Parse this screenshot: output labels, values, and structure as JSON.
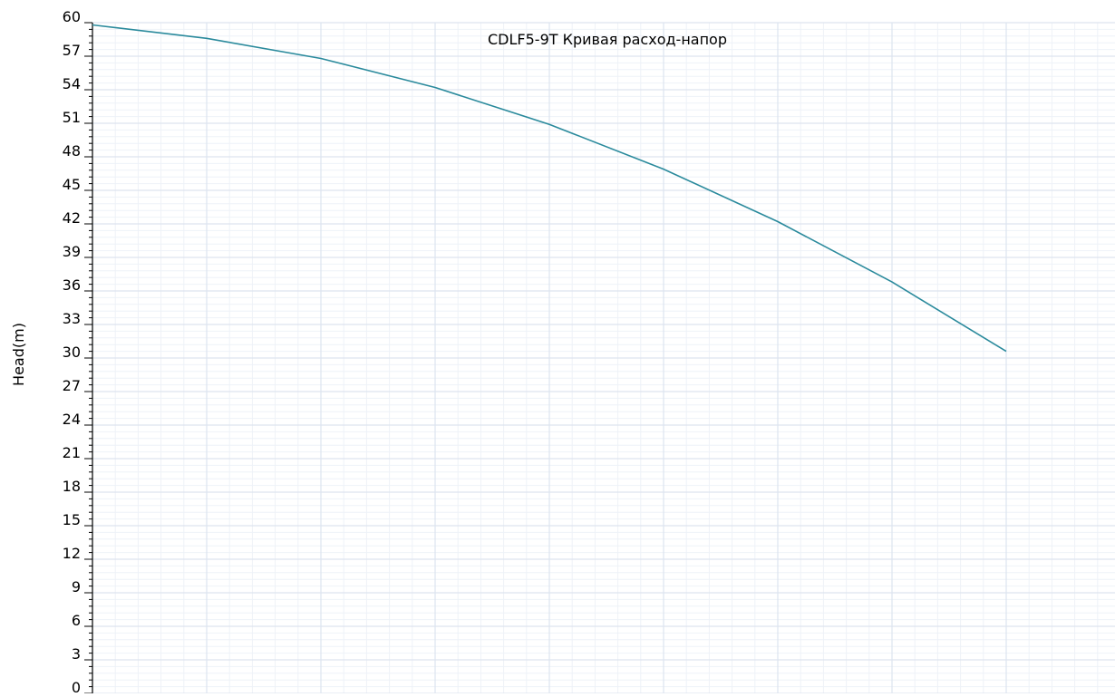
{
  "colors": {
    "curve": "#2a8a9c",
    "grid_major": "#dde4ef",
    "grid_minor": "#eef2f8",
    "axis": "#000000"
  },
  "chart_data": {
    "type": "line",
    "title": "CDLF5-9T Кривая расход-напор",
    "ylabel": "Head(m)",
    "xlabel": "",
    "ylim": [
      0,
      60
    ],
    "y_ticks": [
      0,
      3,
      6,
      9,
      12,
      15,
      18,
      21,
      24,
      27,
      30,
      33,
      36,
      39,
      42,
      45,
      48,
      51,
      54,
      57,
      60
    ],
    "xlim": [
      0,
      9
    ],
    "grid": true,
    "series": [
      {
        "x": [
          0,
          1,
          2,
          3,
          4,
          5,
          6,
          7,
          8
        ],
        "values": [
          59.8,
          58.6,
          56.8,
          54.2,
          50.9,
          46.9,
          42.2,
          36.8,
          30.6
        ]
      }
    ]
  }
}
